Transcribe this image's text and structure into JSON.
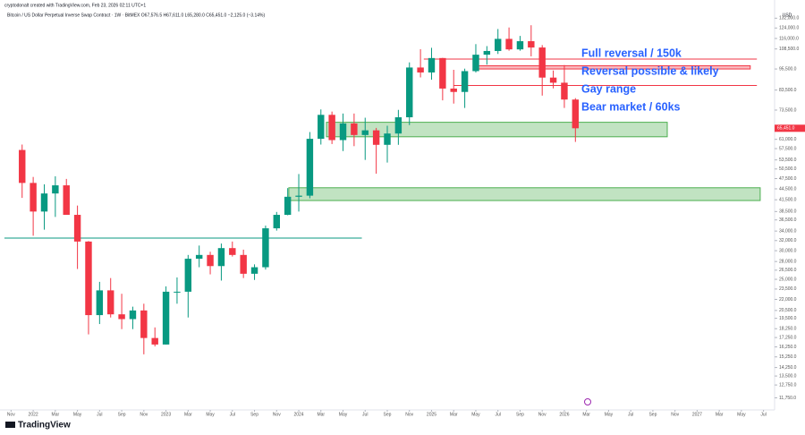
{
  "header": {
    "credit": "cryptodonalt created with TradingView.com, Feb 23, 2026 02:11 UTC+1",
    "footer_logo": "TradingView"
  },
  "chart_data": {
    "type": "candlestick",
    "title": "Bitcoin / US Dollar Perpetual Inverse Swap Contract · 1W · BitMEX   O67,576.5 H67,611.0 L65,280.0 C65,451.0 −2,125.0 (−3.14%)",
    "currency": "USD",
    "log_scale": true,
    "up_color": "#089981",
    "down_color": "#f23645",
    "xlim": [
      -1,
      69
    ],
    "ylim": [
      11000,
      140000
    ],
    "xticks": [
      {
        "value": 0,
        "label": "Nov"
      },
      {
        "value": 2,
        "label": "2022"
      },
      {
        "value": 4,
        "label": "Mar"
      },
      {
        "value": 6,
        "label": "May"
      },
      {
        "value": 8,
        "label": "Jul"
      },
      {
        "value": 10,
        "label": "Sep"
      },
      {
        "value": 12,
        "label": "Nov"
      },
      {
        "value": 14,
        "label": "2023"
      },
      {
        "value": 16,
        "label": "Mar"
      },
      {
        "value": 18,
        "label": "May"
      },
      {
        "value": 20,
        "label": "Jul"
      },
      {
        "value": 22,
        "label": "Sep"
      },
      {
        "value": 24,
        "label": "Nov"
      },
      {
        "value": 26,
        "label": "2024"
      },
      {
        "value": 28,
        "label": "Mar"
      },
      {
        "value": 30,
        "label": "May"
      },
      {
        "value": 32,
        "label": "Jul"
      },
      {
        "value": 34,
        "label": "Sep"
      },
      {
        "value": 36,
        "label": "Nov"
      },
      {
        "value": 38,
        "label": "2025"
      },
      {
        "value": 40,
        "label": "Mar"
      },
      {
        "value": 42,
        "label": "May"
      },
      {
        "value": 44,
        "label": "Jul"
      },
      {
        "value": 46,
        "label": "Sep"
      },
      {
        "value": 48,
        "label": "Nov"
      },
      {
        "value": 50,
        "label": "2026"
      },
      {
        "value": 52,
        "label": "Mar"
      },
      {
        "value": 54,
        "label": "May"
      },
      {
        "value": 56,
        "label": "Jul"
      },
      {
        "value": 58,
        "label": "Sep"
      },
      {
        "value": 60,
        "label": "Nov"
      },
      {
        "value": 62,
        "label": "2027"
      },
      {
        "value": 64,
        "label": "Mar"
      },
      {
        "value": 66,
        "label": "May"
      },
      {
        "value": 68,
        "label": "Jul"
      }
    ],
    "yticks": [
      {
        "value": 132000,
        "label": "132,000.0"
      },
      {
        "value": 124000,
        "label": "124,000.0"
      },
      {
        "value": 116000,
        "label": "116,000.0"
      },
      {
        "value": 108500,
        "label": "108,500.0"
      },
      {
        "value": 95500,
        "label": "95,500.0"
      },
      {
        "value": 83500,
        "label": "83,500.0"
      },
      {
        "value": 73500,
        "label": "73,500.0"
      },
      {
        "value": 61000,
        "label": "61,000.0"
      },
      {
        "value": 57500,
        "label": "57,500.0"
      },
      {
        "value": 53500,
        "label": "53,500.0"
      },
      {
        "value": 50500,
        "label": "50,500.0"
      },
      {
        "value": 47500,
        "label": "47,500.0"
      },
      {
        "value": 44500,
        "label": "44,500.0"
      },
      {
        "value": 41500,
        "label": "41,500.0"
      },
      {
        "value": 38500,
        "label": "38,500.0"
      },
      {
        "value": 36500,
        "label": "36,500.0"
      },
      {
        "value": 34000,
        "label": "34,000.0"
      },
      {
        "value": 32000,
        "label": "32,000.0"
      },
      {
        "value": 30000,
        "label": "30,000.0"
      },
      {
        "value": 28000,
        "label": "28,000.0"
      },
      {
        "value": 26500,
        "label": "26,500.0"
      },
      {
        "value": 25000,
        "label": "25,000.0"
      },
      {
        "value": 23500,
        "label": "23,500.0"
      },
      {
        "value": 22000,
        "label": "22,000.0"
      },
      {
        "value": 20500,
        "label": "20,500.0"
      },
      {
        "value": 19500,
        "label": "19,500.0"
      },
      {
        "value": 18250,
        "label": "18,250.0"
      },
      {
        "value": 17250,
        "label": "17,250.0"
      },
      {
        "value": 16250,
        "label": "16,250.0"
      },
      {
        "value": 15250,
        "label": "15,250.0"
      },
      {
        "value": 14250,
        "label": "14,250.0"
      },
      {
        "value": 13500,
        "label": "13,500.0"
      },
      {
        "value": 12750,
        "label": "12,750.0"
      },
      {
        "value": 11750,
        "label": "11,750.0"
      }
    ],
    "x": [
      1,
      2,
      3,
      4,
      5,
      6,
      7,
      8,
      9,
      10,
      11,
      12,
      13,
      14,
      15,
      16,
      17,
      18,
      19,
      20,
      21,
      22,
      23,
      24,
      25,
      26,
      27,
      28,
      29,
      30,
      31,
      32,
      33,
      34,
      35,
      36,
      37,
      38,
      39,
      40,
      41,
      42,
      43,
      44,
      45,
      46,
      47,
      48,
      49,
      50,
      51
    ],
    "open": [
      57000,
      46200,
      38500,
      43200,
      45500,
      37700,
      31800,
      19900,
      23300,
      20000,
      19400,
      20500,
      17200,
      16500,
      23100,
      23100,
      28500,
      29200,
      27200,
      30500,
      29200,
      25900,
      27000,
      34600,
      37700,
      42300,
      42600,
      61200,
      71300,
      60700,
      67500,
      62700,
      64600,
      58900,
      63300,
      70200,
      96400,
      93400,
      102400,
      84300,
      82500,
      94200,
      104600,
      107100,
      115700,
      108200,
      114000,
      109500,
      90400,
      87500,
      78600
    ],
    "high": [
      59000,
      48000,
      45800,
      48200,
      47400,
      40000,
      31900,
      24600,
      25200,
      22800,
      21000,
      21400,
      18400,
      23900,
      25300,
      29200,
      31000,
      29800,
      31400,
      31800,
      30200,
      27500,
      35200,
      38400,
      44700,
      48900,
      63900,
      73800,
      72800,
      71900,
      71900,
      70000,
      65600,
      66500,
      73600,
      99600,
      108300,
      109300,
      102500,
      95000,
      95700,
      111900,
      110500,
      123200,
      124400,
      117900,
      126200,
      111200,
      94600,
      97900,
      79300
    ],
    "low": [
      42000,
      33000,
      34300,
      37200,
      37700,
      26700,
      17600,
      18800,
      19600,
      18200,
      18200,
      15500,
      16300,
      16500,
      21400,
      19600,
      27000,
      25800,
      24800,
      28900,
      25200,
      24900,
      26600,
      34100,
      37600,
      38500,
      41900,
      59000,
      59200,
      56600,
      58400,
      53500,
      49000,
      52600,
      58900,
      66800,
      90500,
      89200,
      78200,
      76600,
      74500,
      93400,
      98200,
      105100,
      107300,
      107300,
      103500,
      80600,
      84400,
      74500,
      60000
    ],
    "close": [
      46200,
      38500,
      43200,
      45500,
      37700,
      31800,
      19900,
      23300,
      20000,
      19400,
      20500,
      17200,
      16500,
      23100,
      23100,
      28500,
      29200,
      27200,
      30500,
      29200,
      25900,
      27000,
      34600,
      37700,
      42300,
      42600,
      61200,
      71300,
      60700,
      67500,
      62700,
      64600,
      58900,
      63300,
      70200,
      96400,
      93400,
      102400,
      84300,
      82500,
      94200,
      104600,
      107100,
      115700,
      108200,
      114000,
      109500,
      90400,
      87500,
      78600,
      65451
    ],
    "last_price": {
      "value": 65451,
      "label": "65,451.0"
    },
    "zones": [
      {
        "name": "Bear market / 60ks",
        "x": [
          28.5,
          59.3
        ],
        "y": [
          62000,
          68000
        ],
        "color": "#4caf50"
      },
      {
        "x": [
          25.1,
          67.7
        ],
        "y": [
          41300,
          44800
        ],
        "color": "#4caf50"
      },
      {
        "name": "Reversal possible & likely",
        "x": [
          41.8,
          66.8
        ],
        "y": [
          95500,
          97500
        ],
        "color": "#f23645"
      }
    ],
    "levels": [
      {
        "name": "Full reversal / 150k",
        "x": [
          37.3,
          67.4
        ],
        "y": 101700,
        "color": "#f23645"
      },
      {
        "name": "Gay range",
        "x": [
          40,
          67.4
        ],
        "y": 86000,
        "color": "#f23645"
      },
      {
        "x": [
          -0.6,
          31.7
        ],
        "y": 32500,
        "color": "#089981"
      }
    ]
  }
}
